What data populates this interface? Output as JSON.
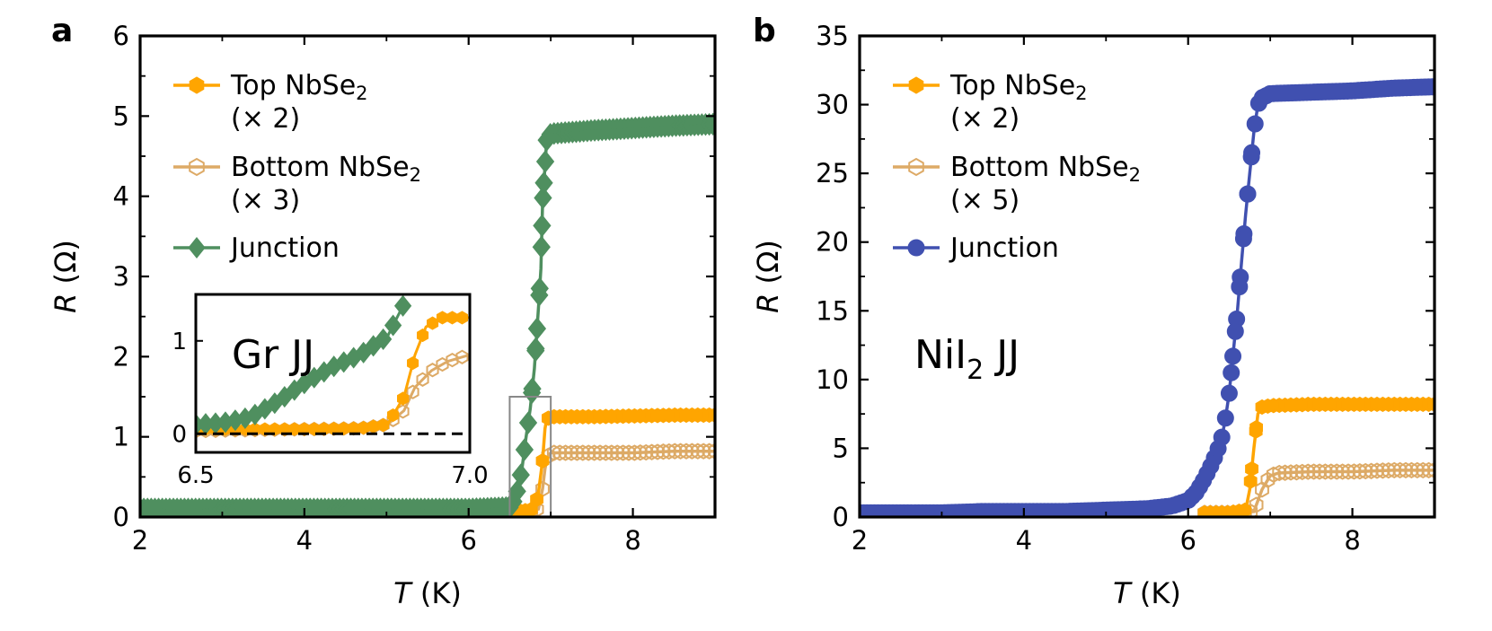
{
  "figure": {
    "panels": [
      {
        "letter": "a"
      },
      {
        "letter": "b"
      }
    ]
  },
  "colors": {
    "top": "#FFA500",
    "bottom": "#DDAA66",
    "junction_a": "#4F8F5F",
    "junction_b": "#4050B0",
    "frame": "#000000",
    "inset_box": "#888888"
  },
  "chart_data": [
    {
      "type": "line",
      "panel": "a",
      "title": "",
      "xlabel_italic": "T",
      "xlabel_unit": " (K)",
      "ylabel_italic": "R",
      "ylabel_unit": " (Ω)",
      "xlim": [
        2,
        9
      ],
      "ylim": [
        0,
        6
      ],
      "xticks": [
        2,
        4,
        6,
        8
      ],
      "yticks": [
        0,
        1,
        2,
        3,
        4,
        5,
        6
      ],
      "legend": [
        {
          "main": "Top NbSe",
          "sub": "2",
          "scale": "(× 2)",
          "series": "top",
          "marker": "hexagon-filled"
        },
        {
          "main": "Bottom NbSe",
          "sub": "2",
          "scale": "(× 3)",
          "series": "bottom",
          "marker": "hexagon-open"
        },
        {
          "main": "Junction",
          "sub": "",
          "scale": "",
          "series": "junction",
          "marker": "diamond"
        }
      ],
      "series": [
        {
          "name": "Top NbSe2 (× 2)",
          "key": "top",
          "x": [
            2.0,
            3.0,
            4.0,
            5.0,
            6.0,
            6.5,
            6.7,
            6.8,
            6.85,
            6.9,
            6.93,
            6.95,
            7.0,
            7.5,
            8.0,
            8.5,
            9.0
          ],
          "y": [
            0.08,
            0.08,
            0.08,
            0.08,
            0.08,
            0.08,
            0.08,
            0.1,
            0.3,
            0.7,
            1.1,
            1.22,
            1.25,
            1.25,
            1.26,
            1.27,
            1.27
          ]
        },
        {
          "name": "Bottom NbSe2 (× 3)",
          "key": "bottom",
          "x": [
            2.0,
            3.0,
            4.0,
            5.0,
            6.0,
            6.5,
            6.7,
            6.85,
            6.9,
            6.93,
            6.96,
            7.0,
            7.5,
            8.0,
            8.5,
            9.0
          ],
          "y": [
            0.06,
            0.06,
            0.06,
            0.06,
            0.06,
            0.06,
            0.06,
            0.1,
            0.35,
            0.6,
            0.75,
            0.8,
            0.8,
            0.8,
            0.82,
            0.82
          ]
        },
        {
          "name": "Junction",
          "key": "junction",
          "x": [
            2.0,
            2.5,
            3.0,
            3.5,
            4.0,
            4.5,
            5.0,
            5.5,
            6.0,
            6.5,
            6.55,
            6.6,
            6.65,
            6.7,
            6.75,
            6.8,
            6.85,
            6.88,
            6.9,
            6.95,
            7.0,
            7.5,
            8.0,
            8.5,
            9.0
          ],
          "y": [
            0.1,
            0.1,
            0.1,
            0.1,
            0.1,
            0.1,
            0.1,
            0.1,
            0.1,
            0.12,
            0.2,
            0.35,
            0.6,
            1.0,
            1.35,
            1.85,
            2.6,
            3.1,
            3.9,
            4.7,
            4.78,
            4.82,
            4.85,
            4.88,
            4.9
          ]
        }
      ],
      "inset": {
        "label": "Gr JJ",
        "xlim": [
          6.5,
          7.0
        ],
        "ylim": [
          -0.2,
          1.5
        ],
        "xticks": [
          6.5,
          7.0
        ],
        "xtick_labels": [
          "6.5",
          "7.0"
        ],
        "yticks": [
          0,
          1
        ],
        "ytick_labels": [
          "0",
          "1"
        ],
        "dashed_y": 0,
        "series": [
          {
            "key": "junction",
            "x": [
              6.5,
              6.55,
              6.6,
              6.65,
              6.7,
              6.75,
              6.8,
              6.85,
              6.88
            ],
            "y": [
              0.1,
              0.12,
              0.18,
              0.35,
              0.55,
              0.72,
              0.85,
              1.05,
              1.4
            ]
          },
          {
            "key": "top",
            "x": [
              6.5,
              6.6,
              6.7,
              6.8,
              6.85,
              6.88,
              6.9,
              6.92,
              6.95,
              7.0
            ],
            "y": [
              0.05,
              0.05,
              0.05,
              0.06,
              0.1,
              0.4,
              0.85,
              1.15,
              1.25,
              1.25
            ]
          },
          {
            "key": "bottom",
            "x": [
              6.5,
              6.6,
              6.7,
              6.8,
              6.85,
              6.88,
              6.9,
              6.93,
              6.96,
              7.0
            ],
            "y": [
              0.03,
              0.04,
              0.05,
              0.06,
              0.1,
              0.25,
              0.5,
              0.68,
              0.78,
              0.85
            ]
          }
        ]
      },
      "zoom_box": {
        "x": [
          6.5,
          7.0
        ],
        "y": [
          0,
          1.5
        ]
      }
    },
    {
      "type": "line",
      "panel": "b",
      "title": "",
      "xlabel_italic": "T",
      "xlabel_unit": " (K)",
      "ylabel_italic": "R",
      "ylabel_unit": " (Ω)",
      "xlim": [
        2,
        9
      ],
      "ylim": [
        0,
        35
      ],
      "xticks": [
        2,
        4,
        6,
        8
      ],
      "yticks": [
        0,
        5,
        10,
        15,
        20,
        25,
        30,
        35
      ],
      "legend": [
        {
          "main": "Top NbSe",
          "sub": "2",
          "scale": "(× 2)",
          "series": "top",
          "marker": "hexagon-filled"
        },
        {
          "main": "Bottom NbSe",
          "sub": "2",
          "scale": "(× 5)",
          "series": "bottom",
          "marker": "hexagon-open"
        },
        {
          "main": "Junction",
          "sub": "",
          "scale": "",
          "series": "junction",
          "marker": "circle"
        }
      ],
      "annotation": {
        "main": "NiI",
        "sub": "2",
        "rest": " JJ"
      },
      "series": [
        {
          "name": "Top NbSe2 (× 2)",
          "key": "top",
          "x": [
            6.2,
            6.5,
            6.7,
            6.75,
            6.8,
            6.85,
            6.9,
            7.0,
            7.5,
            8.0,
            8.5,
            9.0
          ],
          "y": [
            0.3,
            0.3,
            0.5,
            2.0,
            5.0,
            7.5,
            8.0,
            8.1,
            8.2,
            8.2,
            8.2,
            8.2
          ]
        },
        {
          "name": "Bottom NbSe2 (× 5)",
          "key": "bottom",
          "x": [
            6.2,
            6.5,
            6.8,
            6.9,
            7.0,
            7.1,
            7.5,
            8.0,
            8.5,
            9.0
          ],
          "y": [
            0.3,
            0.3,
            0.4,
            2.0,
            3.0,
            3.2,
            3.3,
            3.3,
            3.4,
            3.4
          ]
        },
        {
          "name": "Junction",
          "key": "junction",
          "x": [
            2.0,
            2.5,
            3.0,
            3.5,
            4.0,
            4.5,
            5.0,
            5.5,
            5.8,
            6.0,
            6.1,
            6.2,
            6.3,
            6.4,
            6.45,
            6.5,
            6.55,
            6.6,
            6.65,
            6.7,
            6.75,
            6.8,
            6.85,
            6.9,
            7.0,
            7.5,
            8.0,
            8.5,
            9.0
          ],
          "y": [
            0.3,
            0.3,
            0.3,
            0.4,
            0.4,
            0.4,
            0.5,
            0.6,
            0.8,
            1.2,
            1.8,
            2.8,
            4.0,
            5.5,
            7.0,
            9.0,
            12.0,
            15.0,
            18.5,
            22.0,
            25.0,
            28.0,
            30.0,
            30.5,
            30.8,
            30.9,
            31.0,
            31.2,
            31.3
          ]
        }
      ]
    }
  ]
}
